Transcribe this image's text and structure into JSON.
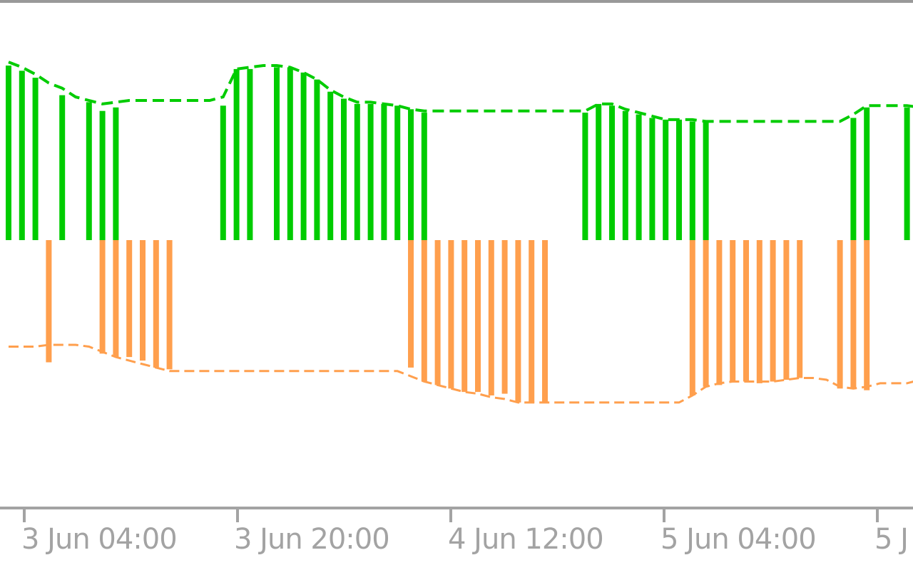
{
  "chart_data": {
    "type": "bar",
    "title": "",
    "xlabel": "",
    "ylabel": "",
    "x_axis": {
      "tick_labels": [
        "3 Jun 04:00",
        "3 Jun 20:00",
        "4 Jun 12:00",
        "5 Jun 04:00",
        "5 J"
      ]
    },
    "grid": false,
    "legend": "none",
    "colors": {
      "positive": "#00cc00",
      "negative": "#ff9f4d",
      "axis": "#a3a3a3",
      "frame": "#999999",
      "background": "#ffffff"
    },
    "upper_series": {
      "bars": [
        [
          0,
          100
        ],
        [
          1,
          97
        ],
        [
          2,
          93
        ],
        [
          4,
          83
        ],
        [
          6,
          79
        ],
        [
          7,
          74
        ],
        [
          8,
          76
        ],
        [
          16,
          77
        ],
        [
          17,
          98
        ],
        [
          18,
          98
        ],
        [
          20,
          99
        ],
        [
          21,
          99
        ],
        [
          22,
          96
        ],
        [
          23,
          92
        ],
        [
          24,
          85
        ],
        [
          25,
          81
        ],
        [
          26,
          78
        ],
        [
          27,
          78
        ],
        [
          28,
          78
        ],
        [
          29,
          77
        ],
        [
          30,
          75
        ],
        [
          31,
          73
        ],
        [
          43,
          73
        ],
        [
          44,
          78
        ],
        [
          45,
          77
        ],
        [
          46,
          74
        ],
        [
          47,
          72
        ],
        [
          48,
          70
        ],
        [
          49,
          69
        ],
        [
          50,
          69
        ],
        [
          51,
          68
        ],
        [
          52,
          68
        ],
        [
          63,
          70
        ],
        [
          64,
          76
        ],
        [
          67,
          76
        ],
        [
          68,
          76
        ]
      ],
      "envelope": [
        [
          0,
          102
        ],
        [
          1,
          99
        ],
        [
          2,
          95
        ],
        [
          3,
          90
        ],
        [
          4,
          87
        ],
        [
          5,
          82
        ],
        [
          6,
          80
        ],
        [
          7,
          78
        ],
        [
          8,
          79
        ],
        [
          9,
          80
        ],
        [
          10,
          80
        ],
        [
          11,
          80
        ],
        [
          12,
          80
        ],
        [
          13,
          80
        ],
        [
          14,
          80
        ],
        [
          15,
          80
        ],
        [
          16,
          82
        ],
        [
          17,
          98
        ],
        [
          18,
          99
        ],
        [
          19,
          100
        ],
        [
          20,
          100
        ],
        [
          21,
          99
        ],
        [
          22,
          96
        ],
        [
          23,
          92
        ],
        [
          24,
          86
        ],
        [
          25,
          82
        ],
        [
          26,
          79
        ],
        [
          27,
          79
        ],
        [
          28,
          78
        ],
        [
          29,
          77
        ],
        [
          30,
          75
        ],
        [
          31,
          74
        ],
        [
          32,
          74
        ],
        [
          33,
          74
        ],
        [
          34,
          74
        ],
        [
          35,
          74
        ],
        [
          36,
          74
        ],
        [
          37,
          74
        ],
        [
          38,
          74
        ],
        [
          39,
          74
        ],
        [
          40,
          74
        ],
        [
          41,
          74
        ],
        [
          42,
          74
        ],
        [
          43,
          74
        ],
        [
          44,
          78
        ],
        [
          45,
          78
        ],
        [
          46,
          75
        ],
        [
          47,
          73
        ],
        [
          48,
          71
        ],
        [
          49,
          69
        ],
        [
          50,
          69
        ],
        [
          51,
          69
        ],
        [
          52,
          68
        ],
        [
          53,
          68
        ],
        [
          54,
          68
        ],
        [
          55,
          68
        ],
        [
          56,
          68
        ],
        [
          57,
          68
        ],
        [
          58,
          68
        ],
        [
          59,
          68
        ],
        [
          60,
          68
        ],
        [
          61,
          68
        ],
        [
          62,
          68
        ],
        [
          63,
          72
        ],
        [
          64,
          77
        ],
        [
          65,
          77
        ],
        [
          66,
          77
        ],
        [
          67,
          77
        ],
        [
          68,
          76
        ]
      ]
    },
    "lower_series": {
      "bars": [
        [
          3,
          -70
        ],
        [
          7,
          -65
        ],
        [
          8,
          -67
        ],
        [
          9,
          -67
        ],
        [
          10,
          -69
        ],
        [
          11,
          -73
        ],
        [
          12,
          -74
        ],
        [
          30,
          -73
        ],
        [
          31,
          -81
        ],
        [
          32,
          -83
        ],
        [
          33,
          -85
        ],
        [
          34,
          -87
        ],
        [
          35,
          -87
        ],
        [
          36,
          -89
        ],
        [
          37,
          -88
        ],
        [
          38,
          -93
        ],
        [
          39,
          -93
        ],
        [
          40,
          -93
        ],
        [
          51,
          -89
        ],
        [
          52,
          -84
        ],
        [
          53,
          -83
        ],
        [
          54,
          -81
        ],
        [
          55,
          -81
        ],
        [
          56,
          -82
        ],
        [
          57,
          -81
        ],
        [
          58,
          -80
        ],
        [
          59,
          -79
        ],
        [
          62,
          -85
        ],
        [
          63,
          -85
        ],
        [
          64,
          -86
        ]
      ],
      "envelope": [
        [
          0,
          -61
        ],
        [
          1,
          -61
        ],
        [
          2,
          -61
        ],
        [
          3,
          -60
        ],
        [
          4,
          -60
        ],
        [
          5,
          -60
        ],
        [
          6,
          -61
        ],
        [
          7,
          -64
        ],
        [
          8,
          -67
        ],
        [
          9,
          -69
        ],
        [
          10,
          -71
        ],
        [
          11,
          -73
        ],
        [
          12,
          -75
        ],
        [
          13,
          -75
        ],
        [
          14,
          -75
        ],
        [
          15,
          -75
        ],
        [
          16,
          -75
        ],
        [
          17,
          -75
        ],
        [
          18,
          -75
        ],
        [
          19,
          -75
        ],
        [
          20,
          -75
        ],
        [
          21,
          -75
        ],
        [
          22,
          -75
        ],
        [
          23,
          -75
        ],
        [
          24,
          -75
        ],
        [
          25,
          -75
        ],
        [
          26,
          -75
        ],
        [
          27,
          -75
        ],
        [
          28,
          -75
        ],
        [
          29,
          -75
        ],
        [
          30,
          -78
        ],
        [
          31,
          -81
        ],
        [
          32,
          -83
        ],
        [
          33,
          -85
        ],
        [
          34,
          -87
        ],
        [
          35,
          -88
        ],
        [
          36,
          -90
        ],
        [
          37,
          -91
        ],
        [
          38,
          -93
        ],
        [
          39,
          -93
        ],
        [
          40,
          -93
        ],
        [
          41,
          -93
        ],
        [
          42,
          -93
        ],
        [
          43,
          -93
        ],
        [
          44,
          -93
        ],
        [
          45,
          -93
        ],
        [
          46,
          -93
        ],
        [
          47,
          -93
        ],
        [
          48,
          -93
        ],
        [
          49,
          -93
        ],
        [
          50,
          -93
        ],
        [
          51,
          -89
        ],
        [
          52,
          -84
        ],
        [
          53,
          -82
        ],
        [
          54,
          -81
        ],
        [
          55,
          -81
        ],
        [
          56,
          -81
        ],
        [
          57,
          -81
        ],
        [
          58,
          -80
        ],
        [
          59,
          -79
        ],
        [
          60,
          -79
        ],
        [
          61,
          -80
        ],
        [
          62,
          -84
        ],
        [
          63,
          -85
        ],
        [
          64,
          -84
        ],
        [
          65,
          -82
        ],
        [
          66,
          -82
        ],
        [
          67,
          -82
        ],
        [
          68,
          -80
        ]
      ]
    }
  }
}
